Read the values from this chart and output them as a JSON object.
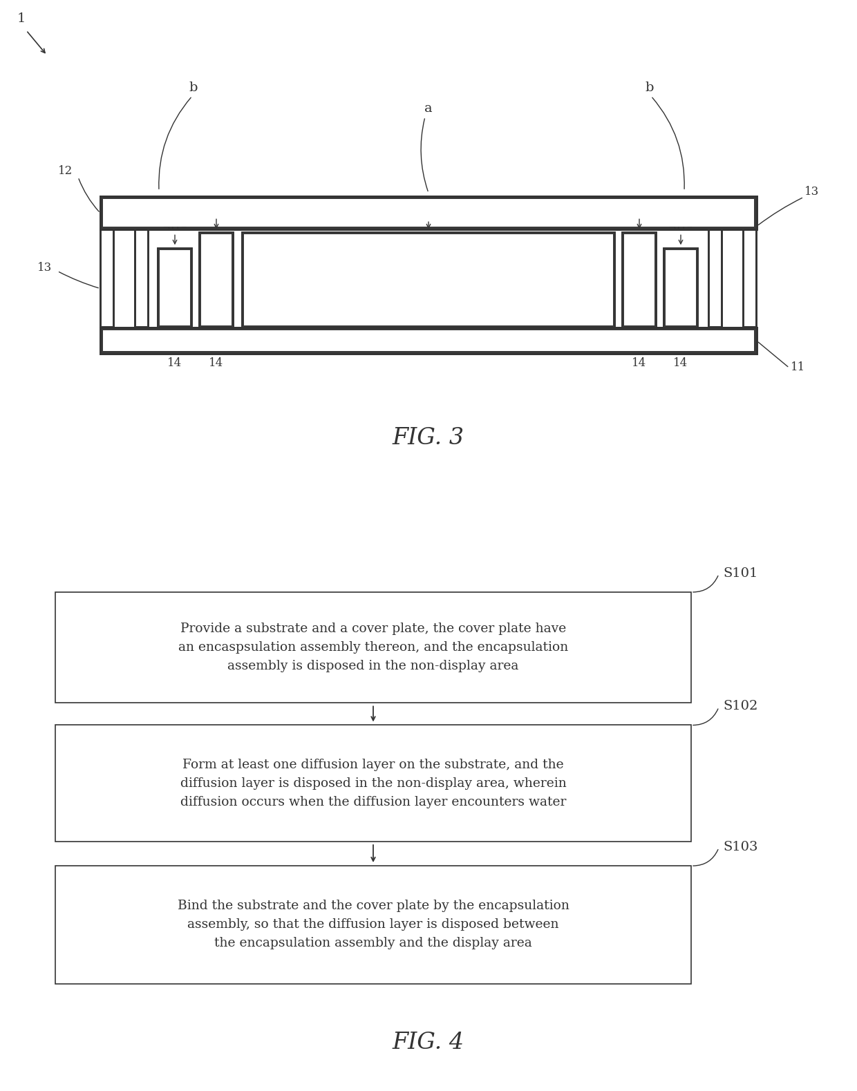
{
  "bg_color": "#ffffff",
  "line_color": "#333333",
  "fig3": {
    "title": "FIG. 3"
  },
  "fig4": {
    "title": "FIG. 4",
    "step_labels": [
      "S101",
      "S102",
      "S103"
    ],
    "step_texts": [
      "Provide a substrate and a cover plate, the cover plate have\nan encaspsulation assembly thereon, and the encapsulation\nassembly is disposed in the non-display area",
      "Form at least one diffusion layer on the substrate, and the\ndiffusion layer is disposed in the non-display area, wherein\ndiffusion occurs when the diffusion layer encounters water",
      "Bind the substrate and the cover plate by the encapsulation\nassembly, so that the diffusion layer is disposed between\nthe encapsulation assembly and the display area"
    ]
  }
}
